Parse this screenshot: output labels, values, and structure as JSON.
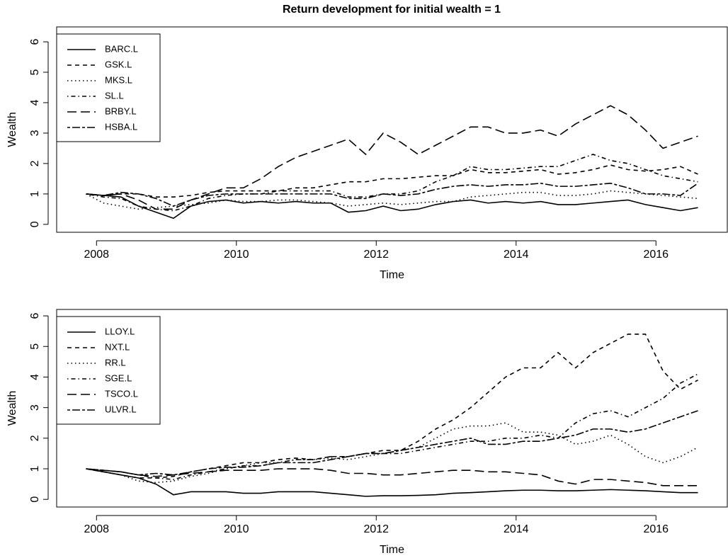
{
  "title": "Return development for initial wealth = 1",
  "chart_data": [
    {
      "type": "line",
      "xlabel": "Time",
      "ylabel": "Wealth",
      "xlim": [
        2007.43,
        2017.02
      ],
      "ylim": [
        -0.26,
        6.49
      ],
      "xticks": [
        2008,
        2010,
        2012,
        2014,
        2016
      ],
      "yticks": [
        0,
        1,
        2,
        3,
        4,
        5,
        6
      ],
      "legend": "topleft",
      "x": [
        2007.85,
        2008.1,
        2008.35,
        2008.6,
        2008.85,
        2009.1,
        2009.35,
        2009.6,
        2009.85,
        2010.1,
        2010.35,
        2010.6,
        2010.85,
        2011.1,
        2011.35,
        2011.6,
        2011.85,
        2012.1,
        2012.35,
        2012.6,
        2012.85,
        2013.1,
        2013.35,
        2013.6,
        2013.85,
        2014.1,
        2014.35,
        2014.6,
        2014.85,
        2015.1,
        2015.35,
        2015.6,
        2015.85,
        2016.1,
        2016.35,
        2016.6
      ],
      "series": [
        {
          "name": "BARC.L",
          "color": "#000000",
          "linestyle": "solid",
          "values": [
            1.0,
            0.95,
            0.9,
            0.6,
            0.4,
            0.2,
            0.6,
            0.75,
            0.8,
            0.7,
            0.75,
            0.7,
            0.75,
            0.7,
            0.7,
            0.4,
            0.45,
            0.6,
            0.45,
            0.5,
            0.65,
            0.75,
            0.8,
            0.7,
            0.75,
            0.7,
            0.75,
            0.65,
            0.65,
            0.7,
            0.75,
            0.8,
            0.65,
            0.55,
            0.45,
            0.55
          ]
        },
        {
          "name": "GSK.L",
          "color": "#000000",
          "linestyle": "dashed",
          "values": [
            1.0,
            0.95,
            1.0,
            1.0,
            0.9,
            0.9,
            0.95,
            1.05,
            1.1,
            1.1,
            1.1,
            1.1,
            1.2,
            1.2,
            1.3,
            1.4,
            1.4,
            1.5,
            1.5,
            1.55,
            1.6,
            1.6,
            1.8,
            1.7,
            1.7,
            1.75,
            1.8,
            1.65,
            1.7,
            1.8,
            1.95,
            1.8,
            1.75,
            1.8,
            1.9,
            1.65
          ]
        },
        {
          "name": "MKS.L",
          "color": "#000000",
          "linestyle": "dotted",
          "values": [
            1.0,
            0.7,
            0.6,
            0.5,
            0.55,
            0.6,
            0.65,
            0.7,
            0.8,
            0.75,
            0.75,
            0.8,
            0.8,
            0.75,
            0.7,
            0.6,
            0.65,
            0.7,
            0.65,
            0.7,
            0.75,
            0.75,
            0.9,
            0.95,
            1.0,
            1.05,
            1.05,
            0.95,
            0.95,
            1.0,
            1.1,
            1.05,
            1.0,
            0.95,
            0.9,
            0.85
          ]
        },
        {
          "name": "SL.L",
          "color": "#000000",
          "linestyle": "dotdash",
          "values": [
            1.0,
            0.9,
            0.85,
            0.6,
            0.5,
            0.45,
            0.6,
            0.85,
            0.95,
            1.0,
            1.0,
            1.1,
            1.1,
            1.1,
            1.1,
            0.9,
            0.9,
            1.0,
            1.0,
            1.1,
            1.4,
            1.6,
            1.9,
            1.8,
            1.8,
            1.85,
            1.9,
            1.9,
            2.1,
            2.3,
            2.1,
            2.0,
            1.8,
            1.6,
            1.5,
            1.4
          ]
        },
        {
          "name": "BRBY.L",
          "color": "#000000",
          "linestyle": "longdash",
          "values": [
            1.0,
            0.95,
            1.0,
            0.8,
            0.5,
            0.5,
            0.8,
            1.0,
            1.2,
            1.2,
            1.5,
            1.9,
            2.2,
            2.4,
            2.6,
            2.8,
            2.3,
            3.0,
            2.7,
            2.3,
            2.6,
            2.9,
            3.2,
            3.2,
            3.0,
            3.0,
            3.1,
            2.9,
            3.3,
            3.6,
            3.9,
            3.6,
            3.1,
            2.5,
            2.7,
            2.9
          ]
        },
        {
          "name": "HSBA.L",
          "color": "#000000",
          "linestyle": "twodash",
          "values": [
            1.0,
            0.95,
            1.05,
            1.0,
            0.85,
            0.6,
            0.8,
            0.95,
            1.0,
            1.0,
            1.0,
            1.0,
            1.0,
            1.0,
            1.0,
            0.85,
            0.85,
            1.0,
            0.95,
            1.0,
            1.15,
            1.25,
            1.3,
            1.25,
            1.3,
            1.3,
            1.35,
            1.25,
            1.25,
            1.3,
            1.35,
            1.2,
            1.0,
            1.0,
            0.95,
            1.35
          ]
        }
      ]
    },
    {
      "type": "line",
      "xlabel": "Time",
      "ylabel": "Wealth",
      "xlim": [
        2007.43,
        2017.02
      ],
      "ylim": [
        -0.25,
        6.21
      ],
      "xticks": [
        2008,
        2010,
        2012,
        2014,
        2016
      ],
      "yticks": [
        0,
        1,
        2,
        3,
        4,
        5,
        6
      ],
      "legend": "topleft",
      "x": [
        2007.85,
        2008.1,
        2008.35,
        2008.6,
        2008.85,
        2009.1,
        2009.35,
        2009.6,
        2009.85,
        2010.1,
        2010.35,
        2010.6,
        2010.85,
        2011.1,
        2011.35,
        2011.6,
        2011.85,
        2012.1,
        2012.35,
        2012.6,
        2012.85,
        2013.1,
        2013.35,
        2013.6,
        2013.85,
        2014.1,
        2014.35,
        2014.6,
        2014.85,
        2015.1,
        2015.35,
        2015.6,
        2015.85,
        2016.1,
        2016.35,
        2016.6
      ],
      "series": [
        {
          "name": "LLOY.L",
          "color": "#000000",
          "linestyle": "solid",
          "values": [
            1.0,
            0.9,
            0.8,
            0.7,
            0.5,
            0.15,
            0.25,
            0.25,
            0.25,
            0.2,
            0.2,
            0.25,
            0.25,
            0.25,
            0.2,
            0.15,
            0.1,
            0.12,
            0.12,
            0.13,
            0.15,
            0.2,
            0.22,
            0.25,
            0.28,
            0.3,
            0.3,
            0.28,
            0.28,
            0.3,
            0.32,
            0.3,
            0.28,
            0.25,
            0.22,
            0.22
          ]
        },
        {
          "name": "NXT.L",
          "color": "#000000",
          "linestyle": "dashed",
          "values": [
            1.0,
            0.9,
            0.8,
            0.7,
            0.7,
            0.75,
            0.9,
            1.0,
            1.1,
            1.2,
            1.2,
            1.3,
            1.35,
            1.3,
            1.4,
            1.4,
            1.5,
            1.6,
            1.6,
            1.9,
            2.3,
            2.6,
            3.0,
            3.5,
            4.0,
            4.3,
            4.3,
            4.8,
            4.3,
            4.8,
            5.1,
            5.4,
            5.4,
            4.2,
            3.6,
            3.9
          ]
        },
        {
          "name": "RR.L",
          "color": "#000000",
          "linestyle": "dotted",
          "values": [
            1.0,
            0.9,
            0.8,
            0.6,
            0.55,
            0.6,
            0.75,
            0.85,
            1.0,
            1.1,
            1.2,
            1.2,
            1.3,
            1.3,
            1.35,
            1.3,
            1.4,
            1.5,
            1.6,
            1.7,
            2.0,
            2.3,
            2.4,
            2.4,
            2.5,
            2.2,
            2.2,
            2.1,
            1.8,
            1.9,
            2.1,
            1.8,
            1.4,
            1.2,
            1.4,
            1.7
          ]
        },
        {
          "name": "SGE.L",
          "color": "#000000",
          "linestyle": "dotdash",
          "values": [
            1.0,
            0.95,
            0.9,
            0.8,
            0.7,
            0.65,
            0.8,
            0.9,
            1.0,
            1.1,
            1.1,
            1.2,
            1.3,
            1.3,
            1.4,
            1.4,
            1.5,
            1.5,
            1.5,
            1.6,
            1.7,
            1.8,
            1.9,
            1.9,
            2.0,
            2.0,
            2.1,
            2.0,
            2.5,
            2.8,
            2.9,
            2.7,
            3.0,
            3.3,
            3.8,
            4.1
          ]
        },
        {
          "name": "TSCO.L",
          "color": "#000000",
          "linestyle": "longdash",
          "values": [
            1.0,
            0.95,
            0.9,
            0.8,
            0.75,
            0.8,
            0.85,
            0.9,
            0.95,
            0.95,
            0.95,
            1.0,
            1.0,
            1.0,
            0.95,
            0.85,
            0.85,
            0.8,
            0.8,
            0.85,
            0.9,
            0.95,
            0.95,
            0.9,
            0.9,
            0.85,
            0.8,
            0.6,
            0.5,
            0.65,
            0.65,
            0.6,
            0.55,
            0.45,
            0.45,
            0.45
          ]
        },
        {
          "name": "ULVR.L",
          "color": "#000000",
          "linestyle": "twodash",
          "values": [
            1.0,
            0.95,
            0.9,
            0.8,
            0.85,
            0.8,
            0.9,
            1.0,
            1.05,
            1.05,
            1.1,
            1.2,
            1.2,
            1.2,
            1.3,
            1.4,
            1.5,
            1.5,
            1.6,
            1.7,
            1.8,
            1.9,
            2.0,
            1.8,
            1.8,
            1.9,
            1.9,
            2.0,
            2.1,
            2.3,
            2.3,
            2.2,
            2.3,
            2.5,
            2.7,
            2.9
          ]
        }
      ]
    }
  ]
}
